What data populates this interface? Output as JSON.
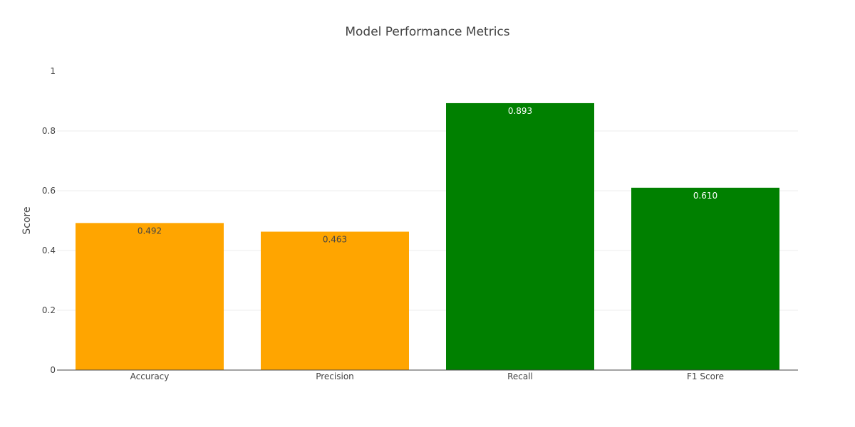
{
  "chart_data": {
    "type": "bar",
    "title": "Model Performance Metrics",
    "xlabel": "",
    "ylabel": "Score",
    "categories": [
      "Accuracy",
      "Precision",
      "Recall",
      "F1 Score"
    ],
    "values": [
      0.492,
      0.463,
      0.893,
      0.61
    ],
    "value_labels": [
      "0.492",
      "0.463",
      "0.893",
      "0.610"
    ],
    "bar_colors": [
      "#FFA500",
      "#FFA500",
      "#008000",
      "#008000"
    ],
    "label_colors": [
      "#444444",
      "#444444",
      "#ffffff",
      "#ffffff"
    ],
    "ylim": [
      0,
      1
    ],
    "yticks": [
      0,
      0.2,
      0.4,
      0.6,
      0.8,
      1
    ],
    "ytick_labels": [
      "0",
      "0.2",
      "0.4",
      "0.6",
      "0.8",
      "1"
    ],
    "grid": true,
    "legend": "none"
  }
}
